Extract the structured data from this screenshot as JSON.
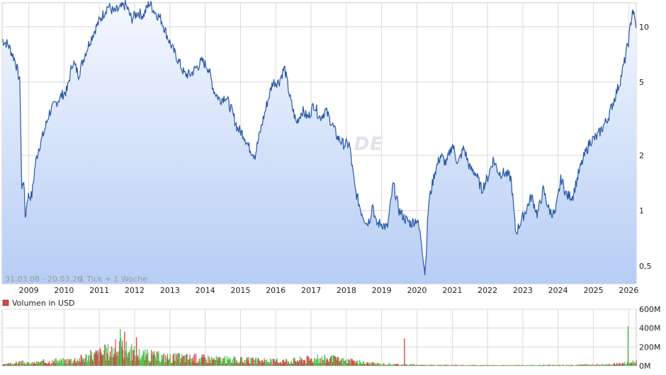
{
  "chart_data": [
    {
      "type": "area",
      "scale": "log",
      "ylim": [
        0.4,
        13.5
      ],
      "x_range": [
        "2008-03-31",
        "2026-03-20"
      ],
      "range_note": "31.03.08 - 20.03.26",
      "tick_note": "1 Tick = 1 Woche",
      "watermark": "ARIVA.DE",
      "y_ticks": [
        {
          "value": 0.5,
          "label": "0,5"
        },
        {
          "value": 1,
          "label": "1"
        },
        {
          "value": 2,
          "label": "2"
        },
        {
          "value": 5,
          "label": "5"
        },
        {
          "value": 10,
          "label": "10"
        }
      ],
      "x_ticks": [
        "2009",
        "2010",
        "2011",
        "2012",
        "2013",
        "2014",
        "2015",
        "2016",
        "2017",
        "2018",
        "2019",
        "2020",
        "2021",
        "2022",
        "2023",
        "2024",
        "2025",
        "2026"
      ],
      "colors": {
        "line": "#2857a6",
        "fill_top": "#f5f8fe",
        "fill_bottom": "#b6cdf5",
        "grid": "#d9d9d9"
      },
      "series": [
        {
          "x": [
            "2008-03-31",
            "2008-06-01",
            "2008-08-15",
            "2008-10-01",
            "2008-10-10",
            "2008-10-20",
            "2008-11-10",
            "2008-11-25",
            "2008-12-20",
            "2009-02-01",
            "2009-03-10",
            "2009-04-15",
            "2009-06-01",
            "2009-08-01",
            "2009-10-01",
            "2009-12-01",
            "2010-02-01",
            "2010-04-01",
            "2010-06-01",
            "2010-08-01",
            "2010-10-01",
            "2010-12-01",
            "2011-02-01",
            "2011-04-01",
            "2011-06-01",
            "2011-08-01",
            "2011-10-01",
            "2011-12-01",
            "2012-02-01",
            "2012-04-01",
            "2012-06-01",
            "2012-08-01",
            "2012-10-01",
            "2012-12-01",
            "2013-02-01",
            "2013-04-01",
            "2013-06-01",
            "2013-08-01",
            "2013-10-01",
            "2013-12-01",
            "2014-02-01",
            "2014-04-01",
            "2014-06-01",
            "2014-08-01",
            "2014-10-01",
            "2014-12-01",
            "2015-02-01",
            "2015-04-01",
            "2015-06-01",
            "2015-08-01",
            "2015-10-01",
            "2015-12-01",
            "2016-02-01",
            "2016-04-01",
            "2016-06-01",
            "2016-08-01",
            "2016-10-01",
            "2016-12-01",
            "2017-02-01",
            "2017-04-01",
            "2017-06-01",
            "2017-08-01",
            "2017-10-01",
            "2017-12-01",
            "2018-02-01",
            "2018-04-01",
            "2018-06-01",
            "2018-08-01",
            "2018-09-01",
            "2018-10-01",
            "2018-11-01",
            "2019-01-01",
            "2019-03-01",
            "2019-05-01",
            "2019-07-01",
            "2019-09-01",
            "2019-11-01",
            "2020-01-01",
            "2020-02-15",
            "2020-03-25",
            "2020-05-01",
            "2020-07-01",
            "2020-09-01",
            "2020-11-01",
            "2021-01-01",
            "2021-03-01",
            "2021-05-01",
            "2021-07-01",
            "2021-09-01",
            "2021-11-01",
            "2022-01-01",
            "2022-03-01",
            "2022-05-01",
            "2022-07-01",
            "2022-09-01",
            "2022-10-20",
            "2022-12-01",
            "2023-02-01",
            "2023-04-01",
            "2023-06-01",
            "2023-08-01",
            "2023-10-01",
            "2023-12-01",
            "2024-02-01",
            "2024-04-01",
            "2024-06-01",
            "2024-08-01",
            "2024-10-01",
            "2024-12-01",
            "2025-02-01",
            "2025-04-01",
            "2025-06-01",
            "2025-08-01",
            "2025-10-01",
            "2025-11-20",
            "2026-01-01",
            "2026-02-10",
            "2026-03-20"
          ],
          "values": [
            8.5,
            8.0,
            6.5,
            5.0,
            2.8,
            1.3,
            1.5,
            0.9,
            1.2,
            1.2,
            1.8,
            2.2,
            2.6,
            3.4,
            3.8,
            4.2,
            4.5,
            6.5,
            5.5,
            7.0,
            8.5,
            10.0,
            11.5,
            13.0,
            12.0,
            12.5,
            13.2,
            11.0,
            12.0,
            11.5,
            13.5,
            12.0,
            11.0,
            9.0,
            7.5,
            6.5,
            5.5,
            5.5,
            6.0,
            6.5,
            6.0,
            4.5,
            4.0,
            4.2,
            3.5,
            2.8,
            2.6,
            2.2,
            2.0,
            2.8,
            3.8,
            5.0,
            5.0,
            6.0,
            4.0,
            3.0,
            3.5,
            3.2,
            3.8,
            3.2,
            3.5,
            3.0,
            2.5,
            2.3,
            2.3,
            1.3,
            1.0,
            0.85,
            0.9,
            1.1,
            0.85,
            0.85,
            0.8,
            1.4,
            1.0,
            0.9,
            0.85,
            0.9,
            0.7,
            0.45,
            1.1,
            1.6,
            2.0,
            1.8,
            2.3,
            1.8,
            2.2,
            1.7,
            1.6,
            1.3,
            1.5,
            1.9,
            1.6,
            1.6,
            1.5,
            0.75,
            0.85,
            1.0,
            1.2,
            0.95,
            1.3,
            1.0,
            0.95,
            1.5,
            1.2,
            1.2,
            1.6,
            2.0,
            2.4,
            2.5,
            2.8,
            3.2,
            4.0,
            5.0,
            6.5,
            8.5,
            12.5,
            10.0
          ]
        }
      ]
    },
    {
      "type": "bar",
      "legend": "Volumen in USD",
      "ylim": [
        0,
        600000000
      ],
      "y_ticks": [
        {
          "value": 0,
          "label": "0M"
        },
        {
          "value": 200000000,
          "label": "200M"
        },
        {
          "value": 400000000,
          "label": "400M"
        },
        {
          "value": 600000000,
          "label": "600M"
        }
      ],
      "colors": {
        "up": "#4fc24f",
        "down": "#d24a4a"
      },
      "volume_profile": {
        "x": [
          "2008-03-31",
          "2008-10-01",
          "2009-01-01",
          "2009-06-01",
          "2010-01-01",
          "2010-06-01",
          "2010-10-01",
          "2011-02-01",
          "2011-06-01",
          "2011-09-01",
          "2011-12-01",
          "2012-04-01",
          "2012-09-01",
          "2013-01-01",
          "2013-06-01",
          "2014-01-01",
          "2014-06-01",
          "2015-01-01",
          "2015-07-01",
          "2016-01-01",
          "2016-07-01",
          "2017-01-01",
          "2017-06-01",
          "2018-01-01",
          "2018-08-01",
          "2019-01-01",
          "2019-08-01",
          "2020-03-01",
          "2020-10-01",
          "2021-06-01",
          "2022-06-01",
          "2023-06-01",
          "2024-06-01",
          "2025-06-01",
          "2025-12-01",
          "2026-03-20"
        ],
        "values": [
          10000000,
          40000000,
          25000000,
          45000000,
          55000000,
          75000000,
          110000000,
          140000000,
          180000000,
          190000000,
          150000000,
          120000000,
          100000000,
          90000000,
          90000000,
          80000000,
          70000000,
          60000000,
          55000000,
          50000000,
          60000000,
          75000000,
          80000000,
          55000000,
          30000000,
          20000000,
          14000000,
          10000000,
          8000000,
          7000000,
          6000000,
          8000000,
          10000000,
          14000000,
          30000000,
          40000000
        ]
      },
      "spikes": [
        {
          "x": "2019-08-20",
          "value": 290000000,
          "dir": "down"
        },
        {
          "x": "2025-12-20",
          "value": 420000000,
          "dir": "up"
        },
        {
          "x": "2011-08-01",
          "value": 390000000,
          "dir": "up"
        },
        {
          "x": "2011-09-15",
          "value": 360000000,
          "dir": "down"
        },
        {
          "x": "2012-01-15",
          "value": 300000000,
          "dir": "down"
        }
      ]
    }
  ]
}
